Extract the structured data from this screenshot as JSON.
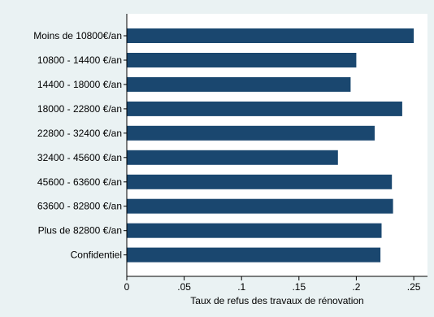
{
  "chart_data": {
    "type": "bar",
    "orientation": "horizontal",
    "title": "",
    "categories": [
      "Moins de 10800€/an",
      "10800 - 14400 €/an",
      "14400 - 18000 €/an",
      "18000 - 22800 €/an",
      "22800 - 32400 €/an",
      "32400 - 45600 €/an",
      "45600 - 63600 €/an",
      "63600 - 82800 €/an",
      "Plus de 82800 €/an",
      "Confidentiel"
    ],
    "values": [
      0.25,
      0.2,
      0.195,
      0.24,
      0.216,
      0.184,
      0.231,
      0.232,
      0.222,
      0.221
    ],
    "xlabel": "Taux de refus des travaux de rénovation",
    "ylabel": "",
    "xlim": [
      0,
      0.262
    ],
    "xticks": [
      0,
      0.05,
      0.1,
      0.15,
      0.2,
      0.25
    ],
    "xtick_labels": [
      "0",
      ".05",
      ".1",
      ".15",
      ".2",
      ".25"
    ],
    "grid": false,
    "colors": {
      "bar": "#1a476f",
      "page_background": "#eaf2f3",
      "plot_background": "#ffffff",
      "axis": "#000000"
    }
  }
}
